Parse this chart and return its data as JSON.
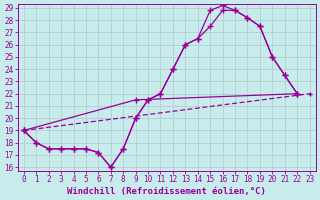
{
  "xlabel": "Windchill (Refroidissement éolien,°C)",
  "background_color": "#c8ecec",
  "line_color": "#990099",
  "xlim_min": -0.5,
  "xlim_max": 23.5,
  "ylim_min": 15.7,
  "ylim_max": 29.3,
  "xticks": [
    0,
    1,
    2,
    3,
    4,
    5,
    6,
    7,
    8,
    9,
    10,
    11,
    12,
    13,
    14,
    15,
    16,
    17,
    18,
    19,
    20,
    21,
    22,
    23
  ],
  "yticks": [
    16,
    17,
    18,
    19,
    20,
    21,
    22,
    23,
    24,
    25,
    26,
    27,
    28,
    29
  ],
  "line1_x": [
    0,
    1,
    2,
    3,
    4,
    5,
    6,
    7,
    8,
    9,
    10,
    11,
    12,
    13,
    14,
    15,
    16,
    17,
    18,
    19,
    20,
    21,
    22
  ],
  "line1_y": [
    19,
    18,
    17.5,
    17.5,
    17.5,
    17.5,
    17.2,
    16.0,
    17.5,
    20.0,
    21.5,
    22.0,
    24.0,
    26.0,
    26.5,
    28.8,
    29.2,
    28.8,
    28.2,
    27.5,
    25.0,
    23.5,
    22.0
  ],
  "line2_x": [
    0,
    1,
    2,
    3,
    4,
    5,
    6,
    7,
    8,
    9,
    10,
    11,
    12,
    13,
    14,
    15,
    16,
    17,
    18,
    19,
    20,
    21,
    22
  ],
  "line2_y": [
    19,
    18,
    17.5,
    17.5,
    17.5,
    17.5,
    17.2,
    16.0,
    17.5,
    20.0,
    21.5,
    22.0,
    24.0,
    26.0,
    26.5,
    27.5,
    28.8,
    28.8,
    28.2,
    27.5,
    25.0,
    23.5,
    22.0
  ],
  "line3_x": [
    0,
    9,
    22
  ],
  "line3_y": [
    19,
    21.5,
    22.0
  ],
  "line4_x": [
    0,
    23
  ],
  "line4_y": [
    19.0,
    22.0
  ],
  "grid_color": "#b0c8c8",
  "tick_fontsize": 5.5,
  "xlabel_fontsize": 6.5
}
